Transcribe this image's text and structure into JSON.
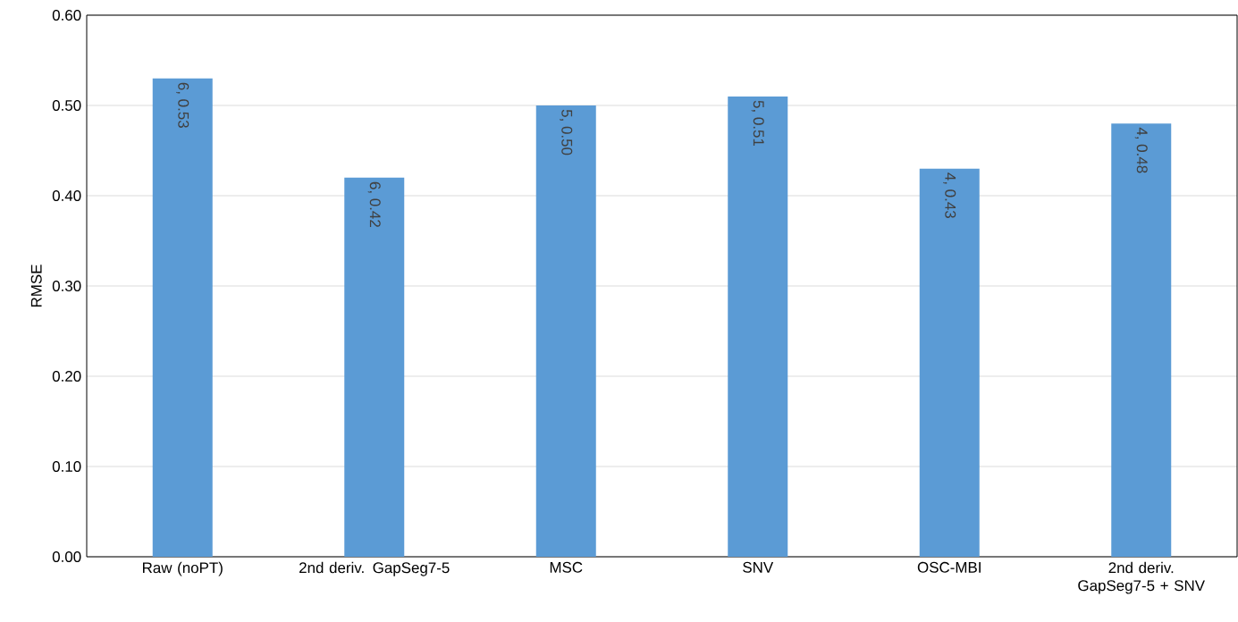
{
  "chart_data": {
    "type": "bar",
    "ylabel": "RMSE",
    "categories": [
      "Raw (noPT)",
      "2nd deriv. GapSeg7-5",
      "MSC",
      "SNV",
      "OSC-MBI",
      "2nd deriv. GapSeg7-5 + SNV"
    ],
    "values": [
      0.53,
      0.42,
      0.5,
      0.51,
      0.43,
      0.48
    ],
    "value_labels": [
      "6, 0.53",
      "6, 0.42",
      "5, 0.50",
      "5, 0.51",
      "4, 0.43",
      "4, 0.48"
    ],
    "color": "#5b9bd5",
    "ylim": [
      0,
      0.6
    ],
    "yticks": [
      {
        "value": 0,
        "label": "0.00"
      },
      {
        "value": 0.1,
        "label": "0.10"
      },
      {
        "value": 0.2,
        "label": "0.20"
      },
      {
        "value": 0.3,
        "label": "0.30"
      },
      {
        "value": 0.4,
        "label": "0.40"
      },
      {
        "value": 0.5,
        "label": "0.50"
      },
      {
        "value": 0.6,
        "label": "0.60"
      }
    ],
    "grid": "y"
  }
}
